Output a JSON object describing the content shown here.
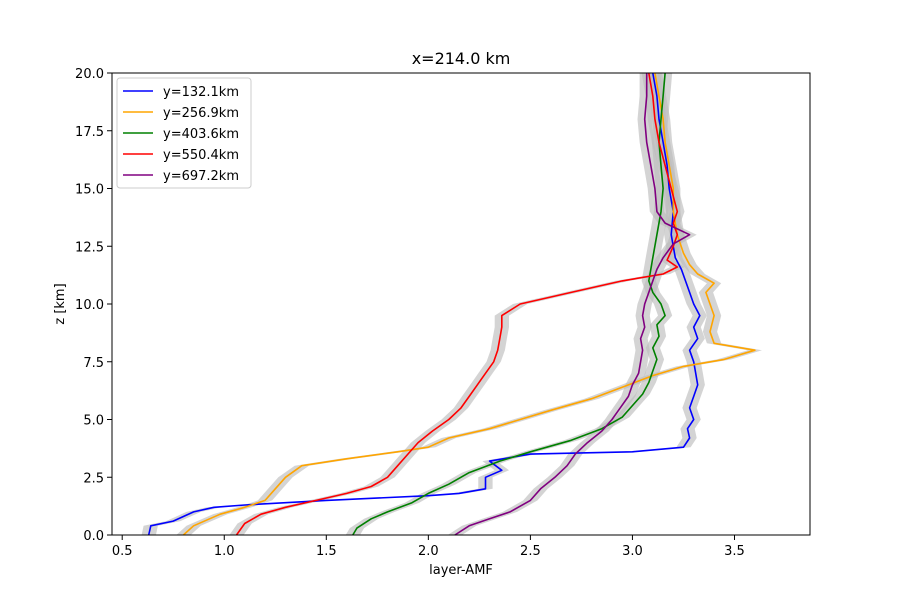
{
  "chart_data": {
    "type": "line",
    "title": "x=214.0 km",
    "xlabel": "layer-AMF",
    "ylabel": "z [km]",
    "xlim": [
      0.45,
      3.87
    ],
    "ylim": [
      0,
      20
    ],
    "xticks": [
      0.5,
      1.0,
      1.5,
      2.0,
      2.5,
      3.0,
      3.5
    ],
    "xtick_labels": [
      "0.5",
      "1.0",
      "1.5",
      "2.0",
      "2.5",
      "3.0",
      "3.5"
    ],
    "yticks": [
      0,
      2.5,
      5,
      7.5,
      10,
      12.5,
      15,
      17.5,
      20
    ],
    "ytick_labels": [
      "0.0",
      "2.5",
      "5.0",
      "7.5",
      "10.0",
      "12.5",
      "15.0",
      "17.5",
      "20.0"
    ],
    "grid": false,
    "legend_position": "top-left",
    "series": [
      {
        "name": "y=132.1km",
        "color": "#0000ff",
        "points": [
          [
            0.63,
            0.0
          ],
          [
            0.64,
            0.4
          ],
          [
            0.75,
            0.6
          ],
          [
            0.85,
            1.0
          ],
          [
            0.95,
            1.2
          ],
          [
            1.1,
            1.3
          ],
          [
            1.5,
            1.5
          ],
          [
            2.0,
            1.7
          ],
          [
            2.15,
            1.8
          ],
          [
            2.28,
            2.0
          ],
          [
            2.28,
            2.5
          ],
          [
            2.36,
            2.8
          ],
          [
            2.3,
            3.2
          ],
          [
            2.5,
            3.5
          ],
          [
            3.0,
            3.6
          ],
          [
            3.25,
            3.8
          ],
          [
            3.28,
            4.2
          ],
          [
            3.27,
            4.6
          ],
          [
            3.3,
            5.0
          ],
          [
            3.28,
            5.5
          ],
          [
            3.3,
            6.0
          ],
          [
            3.32,
            6.5
          ],
          [
            3.31,
            7.0
          ],
          [
            3.3,
            7.5
          ],
          [
            3.28,
            8.0
          ],
          [
            3.32,
            8.5
          ],
          [
            3.3,
            9.0
          ],
          [
            3.33,
            9.5
          ],
          [
            3.3,
            10.0
          ],
          [
            3.28,
            10.5
          ],
          [
            3.26,
            11.0
          ],
          [
            3.24,
            11.5
          ],
          [
            3.21,
            12.0
          ],
          [
            3.19,
            13.0
          ],
          [
            3.2,
            14.0
          ],
          [
            3.18,
            15.0
          ],
          [
            3.17,
            16.0
          ],
          [
            3.15,
            17.0
          ],
          [
            3.13,
            18.0
          ],
          [
            3.12,
            19.0
          ],
          [
            3.1,
            20.0
          ]
        ]
      },
      {
        "name": "y=256.9km",
        "color": "#ffa500",
        "points": [
          [
            0.8,
            0.0
          ],
          [
            0.85,
            0.4
          ],
          [
            0.98,
            0.9
          ],
          [
            1.1,
            1.2
          ],
          [
            1.2,
            1.5
          ],
          [
            1.25,
            2.0
          ],
          [
            1.3,
            2.5
          ],
          [
            1.38,
            3.0
          ],
          [
            1.6,
            3.3
          ],
          [
            1.85,
            3.6
          ],
          [
            2.0,
            3.8
          ],
          [
            2.1,
            4.2
          ],
          [
            2.3,
            4.6
          ],
          [
            2.45,
            5.0
          ],
          [
            2.6,
            5.4
          ],
          [
            2.8,
            5.9
          ],
          [
            2.95,
            6.4
          ],
          [
            3.1,
            6.9
          ],
          [
            3.25,
            7.3
          ],
          [
            3.45,
            7.6
          ],
          [
            3.6,
            8.0
          ],
          [
            3.4,
            8.3
          ],
          [
            3.38,
            8.8
          ],
          [
            3.4,
            9.5
          ],
          [
            3.38,
            10.0
          ],
          [
            3.36,
            10.5
          ],
          [
            3.4,
            10.9
          ],
          [
            3.32,
            11.3
          ],
          [
            3.28,
            11.7
          ],
          [
            3.25,
            12.2
          ],
          [
            3.22,
            13.0
          ],
          [
            3.2,
            14.0
          ],
          [
            3.2,
            15.0
          ],
          [
            3.18,
            16.0
          ],
          [
            3.16,
            17.0
          ],
          [
            3.15,
            18.0
          ],
          [
            3.13,
            19.0
          ],
          [
            3.11,
            20.0
          ]
        ]
      },
      {
        "name": "y=403.6km",
        "color": "#008000",
        "points": [
          [
            1.63,
            0.0
          ],
          [
            1.65,
            0.3
          ],
          [
            1.72,
            0.7
          ],
          [
            1.8,
            1.0
          ],
          [
            1.92,
            1.4
          ],
          [
            2.0,
            1.8
          ],
          [
            2.1,
            2.2
          ],
          [
            2.2,
            2.7
          ],
          [
            2.35,
            3.2
          ],
          [
            2.5,
            3.6
          ],
          [
            2.7,
            4.1
          ],
          [
            2.85,
            4.6
          ],
          [
            2.95,
            5.1
          ],
          [
            3.0,
            5.6
          ],
          [
            3.05,
            6.1
          ],
          [
            3.08,
            6.6
          ],
          [
            3.1,
            7.1
          ],
          [
            3.12,
            7.6
          ],
          [
            3.1,
            8.1
          ],
          [
            3.13,
            8.6
          ],
          [
            3.12,
            9.1
          ],
          [
            3.16,
            9.5
          ],
          [
            3.14,
            10.0
          ],
          [
            3.1,
            10.5
          ],
          [
            3.08,
            11.0
          ],
          [
            3.09,
            11.5
          ],
          [
            3.1,
            12.0
          ],
          [
            3.12,
            13.0
          ],
          [
            3.14,
            14.0
          ],
          [
            3.15,
            15.0
          ],
          [
            3.14,
            16.0
          ],
          [
            3.13,
            17.0
          ],
          [
            3.14,
            18.0
          ],
          [
            3.15,
            19.0
          ],
          [
            3.16,
            20.0
          ]
        ]
      },
      {
        "name": "y=550.4km",
        "color": "#ff0000",
        "points": [
          [
            1.06,
            0.0
          ],
          [
            1.1,
            0.5
          ],
          [
            1.18,
            0.9
          ],
          [
            1.3,
            1.2
          ],
          [
            1.45,
            1.5
          ],
          [
            1.6,
            1.8
          ],
          [
            1.72,
            2.1
          ],
          [
            1.8,
            2.5
          ],
          [
            1.85,
            3.0
          ],
          [
            1.9,
            3.5
          ],
          [
            1.95,
            4.0
          ],
          [
            2.02,
            4.5
          ],
          [
            2.1,
            5.0
          ],
          [
            2.16,
            5.5
          ],
          [
            2.2,
            6.0
          ],
          [
            2.24,
            6.5
          ],
          [
            2.28,
            7.0
          ],
          [
            2.32,
            7.5
          ],
          [
            2.34,
            8.0
          ],
          [
            2.35,
            8.5
          ],
          [
            2.36,
            9.0
          ],
          [
            2.36,
            9.5
          ],
          [
            2.45,
            10.0
          ],
          [
            2.7,
            10.5
          ],
          [
            2.95,
            11.0
          ],
          [
            3.15,
            11.3
          ],
          [
            3.22,
            11.6
          ],
          [
            3.17,
            11.9
          ],
          [
            3.2,
            12.5
          ],
          [
            3.22,
            13.0
          ],
          [
            3.2,
            13.5
          ],
          [
            3.22,
            14.0
          ],
          [
            3.19,
            15.0
          ],
          [
            3.16,
            16.0
          ],
          [
            3.13,
            17.0
          ],
          [
            3.11,
            18.0
          ],
          [
            3.1,
            19.0
          ],
          [
            3.08,
            20.0
          ]
        ]
      },
      {
        "name": "y=697.2km",
        "color": "#800080",
        "points": [
          [
            2.13,
            0.0
          ],
          [
            2.2,
            0.4
          ],
          [
            2.3,
            0.7
          ],
          [
            2.4,
            1.0
          ],
          [
            2.5,
            1.5
          ],
          [
            2.55,
            2.0
          ],
          [
            2.62,
            2.5
          ],
          [
            2.68,
            3.0
          ],
          [
            2.72,
            3.5
          ],
          [
            2.78,
            4.0
          ],
          [
            2.85,
            4.5
          ],
          [
            2.9,
            5.0
          ],
          [
            2.94,
            5.5
          ],
          [
            2.98,
            6.0
          ],
          [
            3.0,
            6.5
          ],
          [
            3.03,
            7.0
          ],
          [
            3.04,
            7.5
          ],
          [
            3.05,
            8.0
          ],
          [
            3.04,
            8.5
          ],
          [
            3.06,
            9.0
          ],
          [
            3.05,
            9.5
          ],
          [
            3.06,
            10.0
          ],
          [
            3.08,
            10.5
          ],
          [
            3.1,
            11.0
          ],
          [
            3.12,
            11.5
          ],
          [
            3.15,
            12.0
          ],
          [
            3.2,
            12.6
          ],
          [
            3.28,
            13.0
          ],
          [
            3.16,
            13.5
          ],
          [
            3.12,
            14.0
          ],
          [
            3.11,
            15.0
          ],
          [
            3.09,
            16.0
          ],
          [
            3.07,
            17.0
          ],
          [
            3.06,
            18.0
          ],
          [
            3.07,
            19.0
          ],
          [
            3.07,
            20.0
          ]
        ]
      }
    ]
  }
}
